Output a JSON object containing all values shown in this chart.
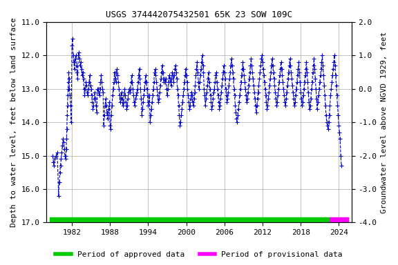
{
  "title": "USGS 374442075432501 65K 23 SOW 109C",
  "ylabel_left": "Depth to water level, feet below land surface",
  "ylabel_right": "Groundwater level above NGVD 1929, feet",
  "xlim": [
    1978,
    2026
  ],
  "ylim_left": [
    17.0,
    11.0
  ],
  "ylim_right": [
    -4.0,
    2.0
  ],
  "xticks": [
    1982,
    1988,
    1994,
    2000,
    2006,
    2012,
    2018,
    2024
  ],
  "yticks_left": [
    11.0,
    12.0,
    13.0,
    14.0,
    15.0,
    16.0,
    17.0
  ],
  "yticks_right": [
    2.0,
    1.0,
    0.0,
    -1.0,
    -2.0,
    -3.0,
    -4.0
  ],
  "line_color": "#0000cc",
  "marker": "+",
  "linestyle": "--",
  "linewidth": 0.8,
  "markersize": 4,
  "approved_color": "#00cc00",
  "provisional_color": "#ff00ff",
  "background_color": "#ffffff",
  "grid_color": "#aaaaaa",
  "title_fontsize": 9,
  "axis_label_fontsize": 8,
  "tick_fontsize": 8,
  "legend_fontsize": 8,
  "approved_bar_start": 1978.5,
  "approved_bar_end": 2022.5,
  "provisional_bar_start": 2022.5,
  "provisional_bar_end": 2025.5,
  "bar_y": 17.0,
  "bar_thickness": 0.15,
  "data_x": [
    1979.0,
    1979.1,
    1979.2,
    1979.3,
    1979.5,
    1979.7,
    1979.9,
    1980.0,
    1980.1,
    1980.2,
    1980.3,
    1980.4,
    1980.5,
    1980.6,
    1980.7,
    1980.8,
    1980.9,
    1981.0,
    1981.05,
    1981.1,
    1981.15,
    1981.2,
    1981.25,
    1981.3,
    1981.35,
    1981.4,
    1981.45,
    1981.5,
    1981.55,
    1981.6,
    1981.7,
    1981.8,
    1981.9,
    1982.0,
    1982.1,
    1982.2,
    1982.3,
    1982.4,
    1982.5,
    1982.6,
    1982.7,
    1982.8,
    1982.9,
    1983.0,
    1983.1,
    1983.2,
    1983.3,
    1983.4,
    1983.5,
    1983.6,
    1983.7,
    1983.8,
    1983.9,
    1984.0,
    1984.1,
    1984.2,
    1984.3,
    1984.4,
    1984.5,
    1984.6,
    1984.7,
    1984.8,
    1984.9,
    1985.0,
    1985.1,
    1985.2,
    1985.3,
    1985.4,
    1985.5,
    1985.6,
    1985.7,
    1985.8,
    1985.9,
    1986.0,
    1986.1,
    1986.2,
    1986.3,
    1986.4,
    1986.5,
    1986.6,
    1986.7,
    1986.8,
    1986.9,
    1987.0,
    1987.1,
    1987.2,
    1987.3,
    1987.4,
    1987.5,
    1987.6,
    1987.7,
    1987.8,
    1987.9,
    1988.0,
    1988.1,
    1988.2,
    1988.3,
    1988.4,
    1988.5,
    1988.6,
    1988.7,
    1988.8,
    1988.9,
    1989.0,
    1989.1,
    1989.2,
    1989.3,
    1989.4,
    1989.5,
    1989.6,
    1989.7,
    1989.8,
    1989.9,
    1990.0,
    1990.1,
    1990.2,
    1990.3,
    1990.4,
    1990.5,
    1990.6,
    1990.7,
    1990.8,
    1990.9,
    1991.0,
    1991.1,
    1991.2,
    1991.3,
    1991.4,
    1991.5,
    1991.6,
    1991.7,
    1991.8,
    1991.9,
    1992.0,
    1992.1,
    1992.2,
    1992.3,
    1992.4,
    1992.5,
    1992.6,
    1992.7,
    1992.8,
    1992.9,
    1993.0,
    1993.1,
    1993.2,
    1993.3,
    1993.4,
    1993.5,
    1993.6,
    1993.7,
    1993.8,
    1993.9,
    1994.0,
    1994.1,
    1994.2,
    1994.3,
    1994.4,
    1994.5,
    1994.6,
    1994.7,
    1994.8,
    1994.9,
    1995.0,
    1995.1,
    1995.2,
    1995.3,
    1995.4,
    1995.5,
    1995.6,
    1995.7,
    1995.8,
    1995.9,
    1996.0,
    1996.1,
    1996.2,
    1996.3,
    1996.4,
    1996.5,
    1996.6,
    1996.7,
    1996.8,
    1996.9,
    1997.0,
    1997.1,
    1997.2,
    1997.3,
    1997.4,
    1997.5,
    1997.6,
    1997.7,
    1997.8,
    1997.9,
    1998.0,
    1998.1,
    1998.2,
    1998.3,
    1998.4,
    1998.5,
    1998.6,
    1998.7,
    1998.8,
    1998.9,
    1999.0,
    1999.1,
    1999.2,
    1999.3,
    1999.4,
    1999.5,
    1999.6,
    1999.7,
    1999.8,
    1999.9,
    2000.0,
    2000.1,
    2000.2,
    2000.3,
    2000.4,
    2000.5,
    2000.6,
    2000.7,
    2000.8,
    2000.9,
    2001.0,
    2001.1,
    2001.2,
    2001.3,
    2001.4,
    2001.5,
    2001.6,
    2001.7,
    2001.8,
    2001.9,
    2002.0,
    2002.1,
    2002.2,
    2002.3,
    2002.4,
    2002.5,
    2002.6,
    2002.7,
    2002.8,
    2002.9,
    2003.0,
    2003.1,
    2003.2,
    2003.3,
    2003.4,
    2003.5,
    2003.6,
    2003.7,
    2003.8,
    2003.9,
    2004.0,
    2004.1,
    2004.2,
    2004.3,
    2004.4,
    2004.5,
    2004.6,
    2004.7,
    2004.8,
    2004.9,
    2005.0,
    2005.1,
    2005.2,
    2005.3,
    2005.4,
    2005.5,
    2005.6,
    2005.7,
    2005.8,
    2005.9,
    2006.0,
    2006.1,
    2006.2,
    2006.3,
    2006.4,
    2006.5,
    2006.6,
    2006.7,
    2006.8,
    2006.9,
    2007.0,
    2007.1,
    2007.2,
    2007.3,
    2007.4,
    2007.5,
    2007.6,
    2007.7,
    2007.8,
    2007.9,
    2008.0,
    2008.1,
    2008.2,
    2008.3,
    2008.4,
    2008.5,
    2008.6,
    2008.7,
    2008.8,
    2008.9,
    2009.0,
    2009.1,
    2009.2,
    2009.3,
    2009.4,
    2009.5,
    2009.6,
    2009.7,
    2009.8,
    2009.9,
    2010.0,
    2010.1,
    2010.2,
    2010.3,
    2010.4,
    2010.5,
    2010.6,
    2010.7,
    2010.8,
    2010.9,
    2011.0,
    2011.1,
    2011.2,
    2011.3,
    2011.4,
    2011.5,
    2011.6,
    2011.7,
    2011.8,
    2011.9,
    2012.0,
    2012.1,
    2012.2,
    2012.3,
    2012.4,
    2012.5,
    2012.6,
    2012.7,
    2012.8,
    2012.9,
    2013.0,
    2013.1,
    2013.2,
    2013.3,
    2013.4,
    2013.5,
    2013.6,
    2013.7,
    2013.8,
    2013.9,
    2014.0,
    2014.1,
    2014.2,
    2014.3,
    2014.4,
    2014.5,
    2014.6,
    2014.7,
    2014.8,
    2014.9,
    2015.0,
    2015.1,
    2015.2,
    2015.3,
    2015.4,
    2015.5,
    2015.6,
    2015.7,
    2015.8,
    2015.9,
    2016.0,
    2016.1,
    2016.2,
    2016.3,
    2016.4,
    2016.5,
    2016.6,
    2016.7,
    2016.8,
    2016.9,
    2017.0,
    2017.1,
    2017.2,
    2017.3,
    2017.4,
    2017.5,
    2017.6,
    2017.7,
    2017.8,
    2017.9,
    2018.0,
    2018.1,
    2018.2,
    2018.3,
    2018.4,
    2018.5,
    2018.6,
    2018.7,
    2018.8,
    2018.9,
    2019.0,
    2019.1,
    2019.2,
    2019.3,
    2019.4,
    2019.5,
    2019.6,
    2019.7,
    2019.8,
    2019.9,
    2020.0,
    2020.1,
    2020.2,
    2020.3,
    2020.4,
    2020.5,
    2020.6,
    2020.7,
    2020.8,
    2020.9,
    2021.0,
    2021.1,
    2021.2,
    2021.3,
    2021.4,
    2021.5,
    2021.6,
    2021.7,
    2021.8,
    2021.9,
    2022.0,
    2022.1,
    2022.2,
    2022.3,
    2022.4,
    2022.5,
    2022.6,
    2022.7,
    2022.8,
    2022.9,
    2023.0,
    2023.1,
    2023.2,
    2023.3,
    2023.4,
    2023.5,
    2023.6,
    2023.7,
    2023.8,
    2023.9,
    2024.0,
    2024.1,
    2024.2,
    2024.3,
    2024.4
  ],
  "data_y": [
    15.0,
    15.2,
    15.3,
    15.1,
    15.0,
    14.9,
    16.2,
    15.8,
    15.5,
    15.3,
    15.1,
    14.9,
    14.7,
    14.5,
    14.6,
    14.8,
    15.0,
    15.1,
    15.0,
    14.8,
    14.5,
    14.2,
    13.8,
    13.5,
    13.2,
    13.0,
    12.8,
    12.5,
    12.7,
    13.0,
    13.2,
    13.5,
    14.0,
    11.7,
    11.5,
    12.0,
    12.2,
    12.4,
    12.1,
    12.0,
    12.3,
    12.5,
    12.7,
    12.0,
    11.9,
    12.1,
    12.3,
    12.2,
    12.4,
    12.6,
    12.5,
    12.7,
    13.0,
    13.2,
    13.0,
    12.8,
    12.9,
    13.1,
    13.2,
    13.0,
    12.8,
    12.6,
    12.9,
    13.0,
    13.2,
    13.4,
    13.6,
    13.5,
    13.3,
    13.1,
    13.3,
    13.5,
    13.7,
    13.0,
    13.0,
    13.1,
    13.2,
    13.0,
    12.8,
    12.6,
    12.8,
    13.0,
    13.1,
    14.1,
    13.8,
    13.5,
    13.3,
    13.5,
    13.7,
    13.9,
    13.8,
    13.6,
    13.4,
    14.1,
    14.2,
    13.8,
    13.5,
    13.2,
    13.0,
    12.8,
    12.5,
    12.7,
    12.8,
    12.5,
    12.4,
    12.6,
    12.8,
    13.0,
    13.2,
    13.4,
    13.3,
    13.1,
    13.3,
    13.5,
    13.4,
    13.2,
    13.0,
    13.2,
    13.4,
    13.6,
    13.5,
    13.3,
    13.1,
    13.0,
    13.1,
    13.0,
    12.8,
    12.6,
    12.8,
    13.0,
    13.2,
    13.4,
    13.5,
    13.3,
    13.2,
    13.1,
    13.0,
    12.8,
    12.6,
    12.4,
    12.7,
    13.0,
    13.3,
    13.8,
    13.6,
    13.4,
    13.2,
    13.0,
    12.8,
    12.6,
    12.8,
    13.0,
    13.2,
    13.5,
    13.4,
    13.2,
    14.0,
    13.8,
    13.6,
    13.4,
    13.2,
    13.0,
    12.8,
    12.5,
    12.4,
    12.6,
    12.8,
    13.0,
    13.2,
    13.4,
    13.3,
    13.1,
    12.9,
    12.7,
    12.5,
    12.3,
    12.5,
    12.7,
    12.8,
    12.7,
    12.8,
    12.7,
    13.0,
    13.2,
    13.0,
    12.8,
    12.6,
    12.7,
    12.8,
    12.9,
    12.7,
    12.5,
    12.6,
    12.8,
    12.6,
    12.4,
    12.3,
    12.5,
    12.7,
    13.0,
    13.2,
    13.5,
    13.8,
    14.1,
    14.0,
    13.8,
    13.6,
    13.4,
    13.2,
    13.0,
    12.8,
    12.6,
    12.4,
    12.6,
    12.8,
    13.0,
    13.2,
    13.4,
    13.6,
    13.5,
    13.3,
    13.1,
    13.2,
    13.4,
    13.5,
    13.3,
    13.1,
    12.9,
    12.6,
    12.4,
    12.2,
    12.5,
    12.8,
    13.0,
    12.8,
    12.6,
    12.4,
    12.2,
    12.0,
    12.3,
    12.5,
    13.0,
    13.2,
    13.5,
    13.3,
    13.1,
    12.9,
    12.7,
    12.5,
    12.8,
    13.0,
    13.2,
    13.4,
    13.6,
    13.5,
    13.3,
    13.1,
    13.0,
    12.8,
    12.6,
    12.5,
    12.8,
    13.0,
    13.2,
    13.4,
    13.6,
    13.5,
    13.3,
    13.1,
    12.9,
    12.7,
    12.5,
    12.3,
    12.5,
    12.7,
    13.0,
    13.2,
    13.4,
    13.3,
    13.1,
    12.9,
    12.7,
    12.5,
    12.3,
    12.1,
    12.3,
    12.5,
    12.7,
    13.0,
    13.2,
    13.5,
    13.7,
    13.9,
    14.0,
    13.8,
    13.6,
    13.4,
    13.2,
    13.0,
    12.8,
    12.6,
    12.4,
    12.2,
    12.4,
    12.6,
    12.8,
    13.0,
    13.2,
    13.4,
    13.3,
    13.1,
    12.9,
    12.7,
    12.5,
    12.3,
    12.1,
    12.3,
    12.5,
    12.7,
    12.9,
    13.1,
    13.3,
    13.5,
    13.7,
    13.5,
    13.3,
    13.1,
    12.9,
    12.7,
    12.5,
    12.3,
    12.1,
    12.0,
    12.2,
    12.4,
    12.6,
    12.8,
    13.0,
    13.2,
    13.4,
    13.6,
    13.5,
    13.3,
    13.1,
    12.9,
    12.7,
    12.5,
    12.3,
    12.1,
    12.3,
    12.5,
    12.7,
    12.9,
    13.1,
    13.3,
    13.5,
    13.4,
    13.2,
    13.0,
    12.8,
    12.6,
    12.4,
    12.2,
    12.4,
    12.6,
    12.8,
    13.0,
    13.2,
    13.4,
    13.5,
    13.3,
    13.1,
    12.9,
    12.7,
    12.5,
    12.3,
    12.1,
    12.3,
    12.5,
    12.7,
    12.9,
    13.1,
    13.3,
    13.5,
    13.4,
    13.2,
    13.0,
    12.8,
    12.6,
    12.4,
    12.2,
    12.5,
    12.8,
    13.1,
    13.3,
    13.5,
    13.4,
    13.2,
    13.0,
    12.8,
    12.6,
    12.4,
    12.2,
    12.5,
    12.8,
    13.1,
    13.4,
    13.6,
    13.5,
    13.3,
    13.0,
    12.8,
    12.5,
    12.3,
    12.1,
    12.4,
    12.7,
    13.0,
    13.3,
    13.6,
    13.4,
    13.2,
    13.0,
    12.8,
    12.6,
    12.4,
    12.2,
    12.0,
    12.3,
    12.6,
    12.9,
    13.2,
    13.5,
    13.8,
    14.0,
    14.1,
    14.2,
    14.0,
    13.8,
    13.5,
    13.2,
    13.0,
    12.8,
    12.6,
    12.4,
    12.2,
    12.0,
    12.3,
    12.6,
    12.9,
    13.2,
    13.5,
    13.8,
    14.1,
    14.3,
    14.5,
    15.0,
    15.3
  ]
}
